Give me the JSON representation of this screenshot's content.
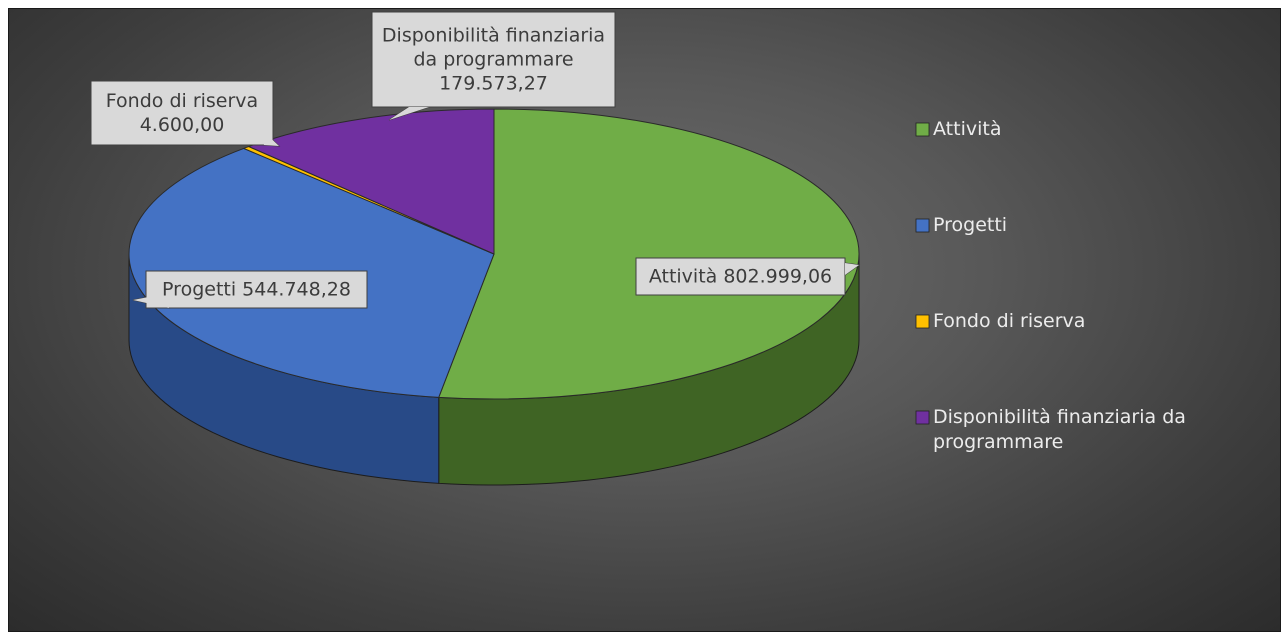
{
  "chart_data": {
    "type": "pie",
    "title": "",
    "legend_position": "right",
    "slices": [
      {
        "name": "Attività",
        "value": 802999.06,
        "value_label": "802.999,06",
        "label": "Attività  802.999,06",
        "color": "#70ad47",
        "side_color": "#3f6424"
      },
      {
        "name": "Progetti",
        "value": 544748.28,
        "value_label": "544.748,28",
        "label": "Progetti  544.748,28",
        "color": "#4472c4",
        "side_color": "#284a87"
      },
      {
        "name": "Fondo di riserva",
        "value": 4600.0,
        "value_label": "4.600,00",
        "label_lines": [
          "Fondo di riserva",
          "4.600,00"
        ],
        "color": "#ffc000",
        "side_color": "#a67d00"
      },
      {
        "name": "Disponibilità finanziaria da programmare",
        "value": 179573.27,
        "value_label": "179.573,27",
        "label_lines": [
          "Disponibilità finanziaria",
          "da programmare",
          "179.573,27"
        ],
        "color": "#7030a0",
        "side_color": "#4a1f6a"
      }
    ]
  },
  "legend": {
    "items": [
      {
        "lines": [
          "Attività"
        ],
        "color": "#70ad47"
      },
      {
        "lines": [
          "Progetti"
        ],
        "color": "#4472c4"
      },
      {
        "lines": [
          "Fondo di riserva"
        ],
        "color": "#ffc000"
      },
      {
        "lines": [
          "Disponibilità finanziaria da",
          "programmare"
        ],
        "color": "#7030a0"
      }
    ]
  }
}
